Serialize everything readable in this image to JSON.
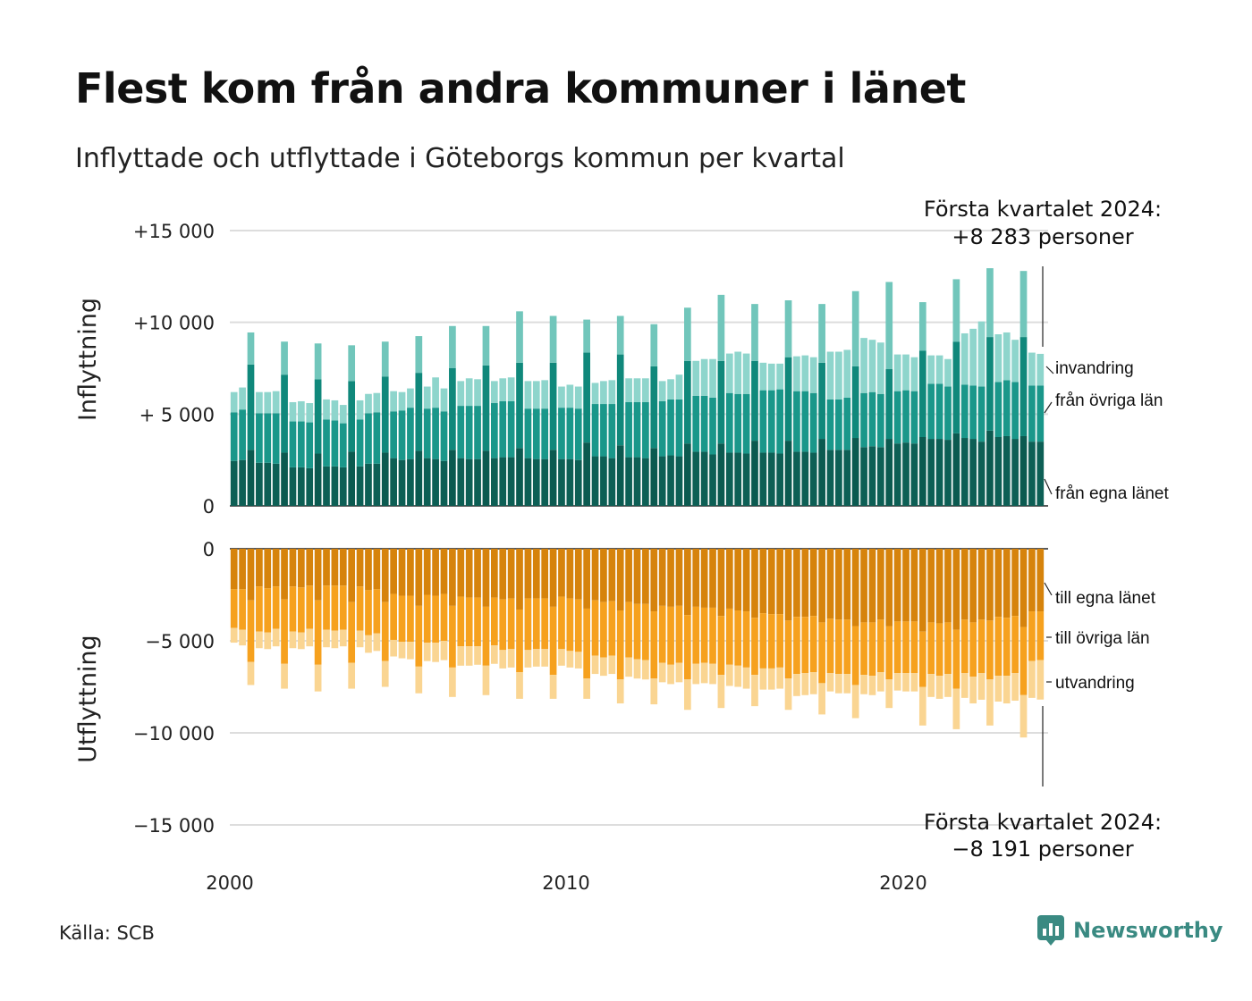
{
  "title": "Flest kom från andra kommuner i länet",
  "subtitle": "Inflyttade och utflyttade i Göteborgs kommun per kvartal",
  "source": "Källa: SCB",
  "brand": "Newsworthy",
  "colors": {
    "in_egna": "#0d5f55",
    "in_ovriga": "#1a978a",
    "in_invandring": "#8ed5cc",
    "in_highlight_egna": "#0b5a50",
    "in_highlight_ovriga": "#10887b",
    "in_highlight_invandring": "#71c6bb",
    "out_egna": "#d6830c",
    "out_ovriga": "#f6a11e",
    "out_utvandring": "#fad592",
    "brand": "#3a8a82"
  },
  "chart_data": {
    "type": "bar",
    "stacked": true,
    "x_ticks": [
      "2000",
      "2010",
      "2020"
    ],
    "top_panel": {
      "ylabel": "Inflyttning",
      "y_ticks": [
        "+15 000",
        "+10 000",
        "+ 5 000",
        "0"
      ],
      "ylim": [
        0,
        15000
      ],
      "series_labels": [
        "invandring",
        "från övriga län",
        "från egna länet"
      ]
    },
    "bottom_panel": {
      "ylabel": "Utflyttning",
      "y_ticks": [
        "0",
        "−5 000",
        "−10 000",
        "−15 000"
      ],
      "ylim": [
        -15000,
        0
      ],
      "series_labels": [
        "till egna länet",
        "till övriga län",
        "utvandring"
      ]
    },
    "annotation_top": [
      "Första kvartalet 2024:",
      "+8 283 personer"
    ],
    "annotation_bottom": [
      "Första kvartalet 2024:",
      "−8 191 personer"
    ],
    "quarters": [
      "2000Q1",
      "2000Q2",
      "2000Q3",
      "2000Q4",
      "2001Q1",
      "2001Q2",
      "2001Q3",
      "2001Q4",
      "2002Q1",
      "2002Q2",
      "2002Q3",
      "2002Q4",
      "2003Q1",
      "2003Q2",
      "2003Q3",
      "2003Q4",
      "2004Q1",
      "2004Q2",
      "2004Q3",
      "2004Q4",
      "2005Q1",
      "2005Q2",
      "2005Q3",
      "2005Q4",
      "2006Q1",
      "2006Q2",
      "2006Q3",
      "2006Q4",
      "2007Q1",
      "2007Q2",
      "2007Q3",
      "2007Q4",
      "2008Q1",
      "2008Q2",
      "2008Q3",
      "2008Q4",
      "2009Q1",
      "2009Q2",
      "2009Q3",
      "2009Q4",
      "2010Q1",
      "2010Q2",
      "2010Q3",
      "2010Q4",
      "2011Q1",
      "2011Q2",
      "2011Q3",
      "2011Q4",
      "2012Q1",
      "2012Q2",
      "2012Q3",
      "2012Q4",
      "2013Q1",
      "2013Q2",
      "2013Q3",
      "2013Q4",
      "2014Q1",
      "2014Q2",
      "2014Q3",
      "2014Q4",
      "2015Q1",
      "2015Q2",
      "2015Q3",
      "2015Q4",
      "2016Q1",
      "2016Q2",
      "2016Q3",
      "2016Q4",
      "2017Q1",
      "2017Q2",
      "2017Q3",
      "2017Q4",
      "2018Q1",
      "2018Q2",
      "2018Q3",
      "2018Q4",
      "2019Q1",
      "2019Q2",
      "2019Q3",
      "2019Q4",
      "2020Q1",
      "2020Q2",
      "2020Q3",
      "2020Q4",
      "2021Q1",
      "2021Q2",
      "2021Q3",
      "2021Q4",
      "2022Q1",
      "2022Q2",
      "2022Q3",
      "2022Q4",
      "2023Q1",
      "2023Q2",
      "2023Q3",
      "2023Q4",
      "2024Q1"
    ],
    "in_egna": [
      2450,
      2500,
      3050,
      2350,
      2350,
      2300,
      2900,
      2100,
      2100,
      2050,
      2850,
      2150,
      2150,
      2100,
      2950,
      2150,
      2300,
      2300,
      2900,
      2600,
      2500,
      2550,
      3000,
      2600,
      2550,
      2450,
      3050,
      2600,
      2550,
      2550,
      3000,
      2600,
      2650,
      2650,
      3150,
      2600,
      2550,
      2550,
      3050,
      2550,
      2550,
      2500,
      3450,
      2700,
      2700,
      2600,
      3300,
      2650,
      2650,
      2600,
      3150,
      2700,
      2750,
      2700,
      3400,
      2950,
      2950,
      2800,
      3400,
      2900,
      2900,
      2850,
      3550,
      2900,
      2900,
      2850,
      3550,
      2950,
      2950,
      2900,
      3650,
      3050,
      3050,
      3050,
      3700,
      3200,
      3250,
      3200,
      3650,
      3400,
      3450,
      3400,
      3750,
      3650,
      3650,
      3600,
      3950,
      3700,
      3650,
      3500,
      4100,
      3750,
      3800,
      3650,
      3800,
      3500,
      3500
    ],
    "in_ovriga": [
      2650,
      2750,
      4650,
      2700,
      2700,
      2750,
      4250,
      2500,
      2500,
      2500,
      4050,
      2550,
      2500,
      2400,
      3850,
      2550,
      2750,
      2800,
      4150,
      2550,
      2700,
      2800,
      4250,
      2700,
      2800,
      2700,
      4450,
      2850,
      2900,
      2900,
      4650,
      3000,
      3050,
      3050,
      4650,
      2700,
      2750,
      2750,
      4750,
      2800,
      2800,
      2800,
      4900,
      2850,
      2850,
      2950,
      4950,
      3000,
      3000,
      3050,
      4450,
      3000,
      3050,
      3100,
      4500,
      3050,
      3050,
      3100,
      4500,
      3250,
      3200,
      3250,
      4350,
      3400,
      3400,
      3500,
      4550,
      3300,
      3300,
      3250,
      4150,
      2750,
      2750,
      2850,
      3900,
      2950,
      2950,
      2900,
      3800,
      2850,
      2850,
      2850,
      4700,
      3000,
      3000,
      2900,
      5000,
      2900,
      2900,
      3000,
      5100,
      3000,
      3050,
      3100,
      5400,
      3050,
      3050
    ],
    "in_invandring": [
      1100,
      1200,
      1750,
      1150,
      1150,
      1200,
      1800,
      1050,
      1100,
      1050,
      1950,
      1100,
      1100,
      1000,
      1950,
      1050,
      1050,
      1050,
      1900,
      1100,
      1000,
      1050,
      2000,
      1200,
      1650,
      1250,
      2300,
      1350,
      1500,
      1450,
      2150,
      1200,
      1250,
      1300,
      2800,
      1500,
      1500,
      1550,
      2550,
      1150,
      1250,
      1200,
      1800,
      1150,
      1250,
      1300,
      2100,
      1300,
      1300,
      1300,
      2300,
      1100,
      1100,
      1350,
      2900,
      1900,
      2000,
      2100,
      3600,
      2150,
      2300,
      2200,
      3100,
      1500,
      1450,
      1400,
      3100,
      1900,
      1950,
      1950,
      3200,
      2600,
      2600,
      2600,
      4100,
      3000,
      2850,
      2800,
      4750,
      2000,
      1950,
      1850,
      2650,
      1550,
      1550,
      1500,
      3400,
      2800,
      3100,
      3550,
      3750,
      2600,
      2600,
      2300,
      3600,
      1800,
      1733
    ],
    "out_egna": [
      2200,
      2200,
      2800,
      2050,
      2150,
      2050,
      2750,
      2050,
      2100,
      2000,
      2800,
      2000,
      2000,
      2000,
      2900,
      2050,
      2250,
      2200,
      2900,
      2450,
      2550,
      2550,
      3100,
      2500,
      2550,
      2450,
      3100,
      2600,
      2650,
      2650,
      3150,
      2650,
      2750,
      2700,
      3300,
      2700,
      2700,
      2700,
      3150,
      2600,
      2700,
      2750,
      3250,
      2800,
      2900,
      2850,
      3350,
      2900,
      3000,
      3000,
      3400,
      3100,
      3150,
      3100,
      3600,
      3150,
      3200,
      3200,
      3650,
      3250,
      3350,
      3400,
      3750,
      3500,
      3550,
      3550,
      3900,
      3700,
      3700,
      3650,
      4000,
      3800,
      3850,
      3850,
      4200,
      4000,
      4000,
      3850,
      4200,
      3950,
      3950,
      3950,
      4500,
      4000,
      4050,
      4000,
      4400,
      3850,
      4000,
      3850,
      3900,
      3700,
      3750,
      3650,
      4250,
      3400,
      3400
    ],
    "out_ovriga": [
      2100,
      2200,
      3350,
      2450,
      2400,
      2300,
      3500,
      2450,
      2450,
      2350,
      3500,
      2400,
      2450,
      2400,
      3300,
      2400,
      2450,
      2400,
      3200,
      2500,
      2500,
      2500,
      3300,
      2600,
      2550,
      2550,
      3350,
      2700,
      2650,
      2650,
      3200,
      2600,
      2750,
      2750,
      3400,
      2800,
      2750,
      2750,
      3700,
      2850,
      2850,
      2850,
      3800,
      3000,
      3000,
      2950,
      3750,
      3000,
      3000,
      3050,
      3650,
      3100,
      3150,
      3100,
      3500,
      3100,
      3000,
      3050,
      3200,
      3050,
      3000,
      3050,
      3100,
      3000,
      2950,
      2900,
      3150,
      3100,
      3050,
      3050,
      3300,
      2950,
      2950,
      2950,
      3200,
      2850,
      2900,
      2850,
      2900,
      2800,
      2800,
      2800,
      3000,
      2800,
      2850,
      2800,
      3200,
      2900,
      2950,
      2900,
      3200,
      3200,
      3150,
      3100,
      3700,
      2700,
      2650
    ],
    "out_utvandring": [
      800,
      850,
      1250,
      900,
      900,
      950,
      1350,
      900,
      900,
      950,
      1450,
      950,
      950,
      900,
      1400,
      900,
      950,
      950,
      1400,
      900,
      900,
      950,
      1450,
      1000,
      1050,
      1050,
      1600,
      1050,
      1050,
      1000,
      1600,
      1000,
      1000,
      1000,
      1450,
      950,
      950,
      950,
      1300,
      900,
      900,
      900,
      1100,
      1000,
      1000,
      1000,
      1300,
      1050,
      1050,
      1050,
      1400,
      1050,
      1050,
      1050,
      1650,
      1100,
      1100,
      1100,
      1800,
      1150,
      1150,
      1150,
      1700,
      1150,
      1150,
      1150,
      1700,
      1200,
      1200,
      1200,
      1700,
      1000,
      1050,
      1050,
      1800,
      1050,
      1050,
      1050,
      1550,
      950,
      1000,
      1000,
      2100,
      1250,
      1250,
      1250,
      2200,
      1350,
      1450,
      1450,
      2500,
      1400,
      1500,
      1500,
      2300,
      2000,
      2141
    ]
  }
}
